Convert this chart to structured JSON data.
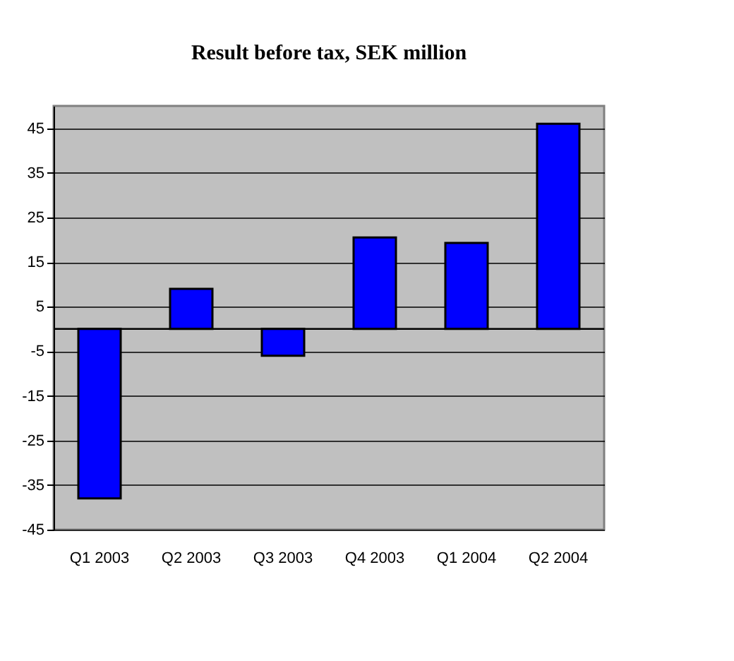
{
  "chart_data": {
    "type": "bar",
    "title": "Result before tax, SEK million",
    "categories": [
      "Q1 2003",
      "Q2 2003",
      "Q3 2003",
      "Q4 2003",
      "Q1 2004",
      "Q2 2004"
    ],
    "values": [
      -38,
      9,
      -6,
      20.5,
      19.3,
      46
    ],
    "color": "#0000ff",
    "ylim": [
      -45,
      50
    ],
    "yticks": [
      -45,
      -35,
      -25,
      -15,
      -5,
      5,
      15,
      25,
      35,
      45
    ],
    "grid": "y",
    "ref_lines": [
      {
        "axis": "y",
        "value": 0,
        "color": "#000000"
      }
    ]
  }
}
